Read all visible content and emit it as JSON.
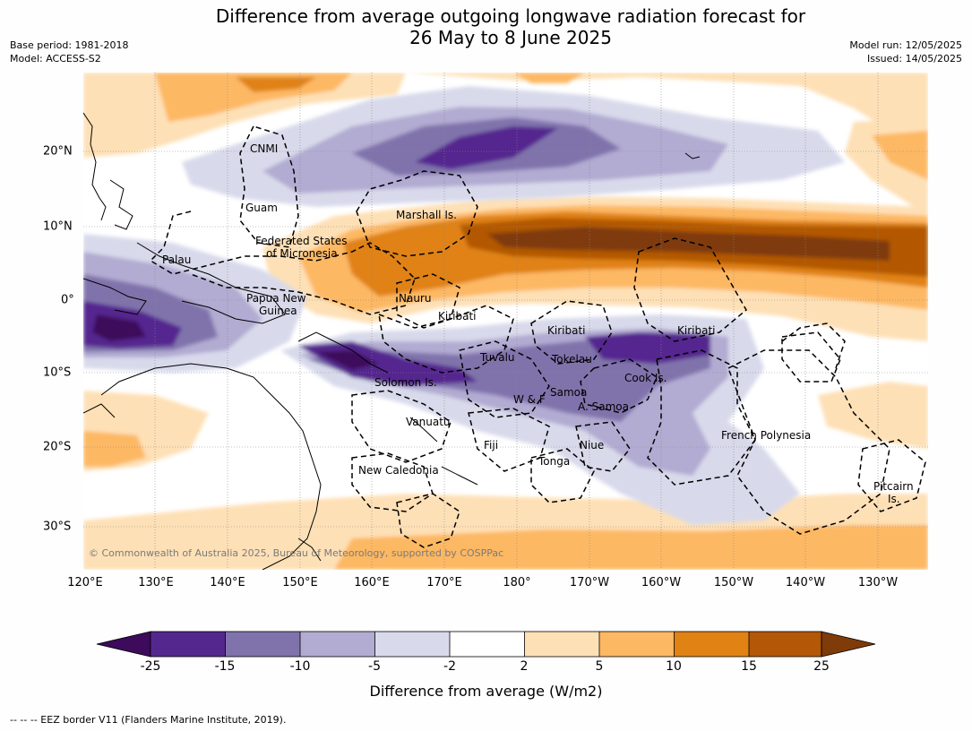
{
  "title": {
    "line1": "Difference from average outgoing longwave radiation forecast for",
    "line2": "26 May to 8 June 2025"
  },
  "meta": {
    "base_period": "Base period: 1981-2018",
    "model": "Model: ACCESS-S2",
    "model_run": "Model run: 12/05/2025",
    "issued": "Issued: 14/05/2025"
  },
  "map": {
    "extent": {
      "lon_min": 120,
      "lon_max": 237.5,
      "lat_min": -35,
      "lat_max": 31
    },
    "longitude_ticks": [
      "120°E",
      "130°E",
      "140°E",
      "150°E",
      "160°E",
      "170°E",
      "180°",
      "170°W",
      "160°W",
      "150°W",
      "140°W",
      "130°W"
    ],
    "latitude_ticks": [
      "20°N",
      "10°N",
      "0°",
      "10°S",
      "20°S",
      "30°S"
    ],
    "places": [
      {
        "name": "CNMI"
      },
      {
        "name": "Guam"
      },
      {
        "name": "Marshall Is."
      },
      {
        "name": "Federated States"
      },
      {
        "name": "of Micronesia"
      },
      {
        "name": "Palau"
      },
      {
        "name": "Papua New"
      },
      {
        "name": "Guinea"
      },
      {
        "name": "Nauru"
      },
      {
        "name": "Kiribati"
      },
      {
        "name": "Kiribati"
      },
      {
        "name": "Kiribati"
      },
      {
        "name": "Tuvalu"
      },
      {
        "name": "Tokelau"
      },
      {
        "name": "Solomon Is."
      },
      {
        "name": "Cook Is."
      },
      {
        "name": "Samoa"
      },
      {
        "name": "W & F"
      },
      {
        "name": "A. Samoa"
      },
      {
        "name": "Vanuatu"
      },
      {
        "name": "Fiji"
      },
      {
        "name": "Niue"
      },
      {
        "name": "French Polynesia"
      },
      {
        "name": "Tonga"
      },
      {
        "name": "New Caledonia"
      },
      {
        "name": "Pitcairn"
      },
      {
        "name": "Is."
      }
    ],
    "copyright": "© Commonwealth of Australia 2025, Bureau of Meteorology, supported by COSPPac"
  },
  "legend": {
    "ticks": [
      "-25",
      "-15",
      "-10",
      "-5",
      "-2",
      "2",
      "5",
      "10",
      "15",
      "25"
    ],
    "colors": [
      "#3d0a5c",
      "#54278f",
      "#8073ac",
      "#b2abd2",
      "#d8daeb",
      "#ffffff",
      "#fee0b6",
      "#fdb863",
      "#e08214",
      "#b35806",
      "#7f3b08"
    ],
    "label": "Difference from average (W/m2)"
  },
  "footnote": "--  --  -- EEZ border V11 (Flanders Marine Institute, 2019)."
}
